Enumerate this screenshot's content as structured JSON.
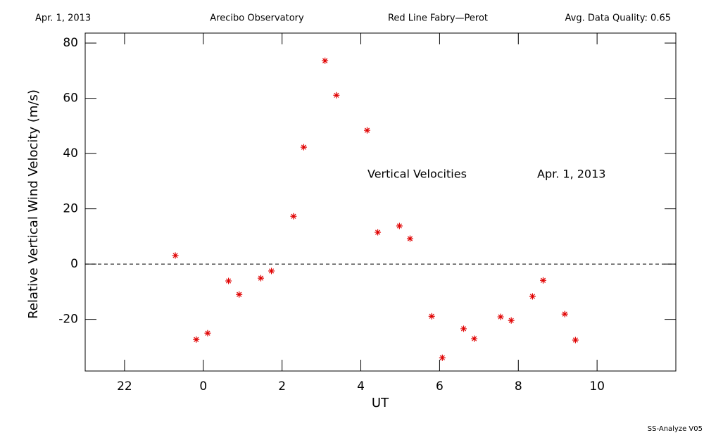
{
  "chart_data": {
    "type": "scatter",
    "header": [
      "Apr. 1, 2013",
      "Arecibo Observatory",
      "Red Line Fabry—Perot",
      "Avg. Data Quality: 0.65"
    ],
    "footer": "SS-Analyze V05",
    "annotations": [
      "Vertical Velocities",
      "Apr. 1, 2013"
    ],
    "xlabel": "UT",
    "ylabel": "Relative Vertical Wind Velocity (m/s)",
    "color": "#e00000",
    "marker": "asterisk",
    "reference_line": 0,
    "xlim": [
      -3,
      12
    ],
    "ylim": [
      -38.7,
      83.6
    ],
    "xticks": [
      {
        "value": -2,
        "label": "22"
      },
      0,
      2,
      4,
      6,
      8,
      10
    ],
    "yticks": [
      -20,
      0,
      20,
      40,
      60,
      80
    ],
    "x": [
      -0.71,
      -0.18,
      0.11,
      0.64,
      0.91,
      1.46,
      1.73,
      2.29,
      2.55,
      3.09,
      3.38,
      4.16,
      4.43,
      4.98,
      5.25,
      5.8,
      6.07,
      6.61,
      6.88,
      7.55,
      7.82,
      8.36,
      8.63,
      9.18,
      9.45
    ],
    "values": [
      3.1,
      -27.3,
      -25.0,
      -6.1,
      -11.0,
      -5.1,
      -2.5,
      17.3,
      42.3,
      73.6,
      61.1,
      48.4,
      11.5,
      13.8,
      9.2,
      -18.9,
      -33.9,
      -23.4,
      -27.0,
      -19.1,
      -20.4,
      -11.7,
      -5.9,
      -18.1,
      -27.5
    ]
  }
}
